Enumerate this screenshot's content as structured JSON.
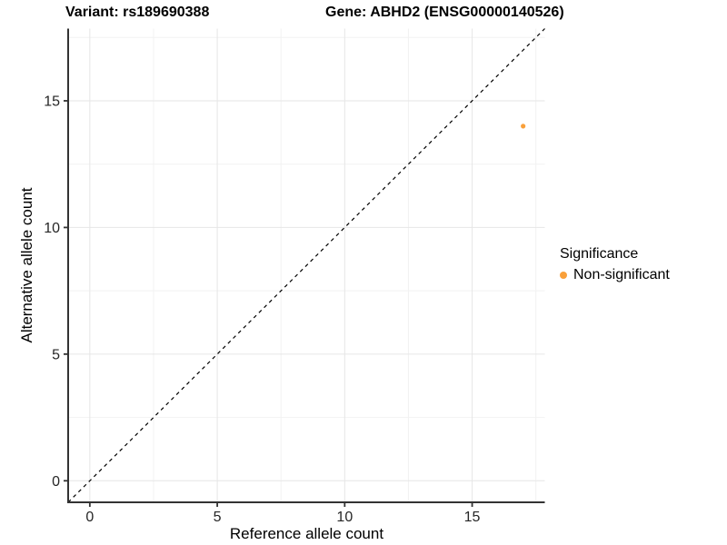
{
  "chart_data": {
    "type": "scatter",
    "title_left": "Variant: rs189690388",
    "title_right": "Gene: ABHD2 (ENSG00000140526)",
    "xlabel": "Reference allele count",
    "ylabel": "Alternative allele count",
    "xlim": [
      -0.85,
      17.85
    ],
    "ylim": [
      -0.85,
      17.85
    ],
    "xticks": [
      0,
      5,
      10,
      15
    ],
    "yticks": [
      0,
      5,
      10,
      15
    ],
    "xminor": [
      2.5,
      7.5,
      12.5,
      17.5
    ],
    "yminor": [
      2.5,
      7.5,
      12.5,
      17.5
    ],
    "grid": "major and minor gridlines on white background",
    "identity_line": {
      "style": "dashed",
      "color": "#000000",
      "from": [
        -0.85,
        -0.85
      ],
      "to": [
        17.85,
        17.85
      ]
    },
    "series": [
      {
        "name": "Non-significant",
        "color": "#F9A03A",
        "point_radius": 2.6,
        "points": [
          {
            "x": 17,
            "y": 14
          }
        ]
      }
    ],
    "legend": {
      "title": "Significance",
      "position": "right",
      "items": [
        {
          "label": "Non-significant",
          "color": "#F9A03A"
        }
      ]
    }
  },
  "colors": {
    "background": "#FFFFFF",
    "axis_line": "#333333",
    "tick_text": "#262626",
    "grid_major": "#E6E6E6",
    "grid_minor": "#F2F2F2"
  }
}
